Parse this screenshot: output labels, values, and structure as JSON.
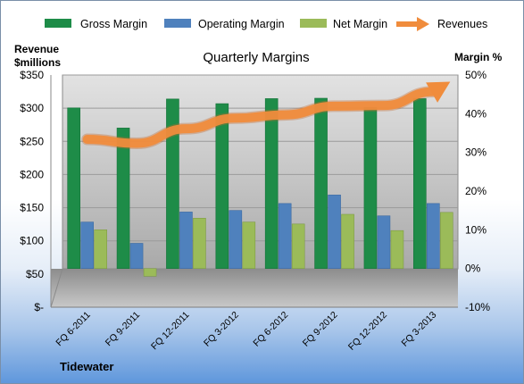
{
  "chart_data": {
    "type": "bar",
    "title": "Quarterly Margins",
    "ylabel_left": [
      "Revenue",
      "$millions"
    ],
    "ylabel_right": "Margin %",
    "footer": "Tidewater",
    "categories": [
      "FQ 6-2011",
      "FQ 9-2011",
      "FQ 12-2011",
      "FQ 3-2012",
      "FQ 6-2012",
      "FQ 9-2012",
      "FQ 12-2012",
      "FQ 3-2013"
    ],
    "y_left": {
      "ylim": [
        0,
        350
      ],
      "ticks": [
        0,
        50,
        100,
        150,
        200,
        250,
        300,
        350
      ],
      "tick_labels": [
        "$-",
        "$50",
        "$100",
        "$150",
        "$200",
        "$250",
        "$300",
        "$350"
      ]
    },
    "y_right": {
      "ylim": [
        -10,
        50
      ],
      "ticks": [
        -10,
        0,
        10,
        20,
        30,
        40,
        50
      ],
      "tick_labels": [
        "-10%",
        "0%",
        "10%",
        "20%",
        "30%",
        "40%",
        "50%"
      ]
    },
    "series": [
      {
        "name": "Gross Margin",
        "axis": "right",
        "color": "#1e8c48",
        "values": [
          41.5,
          36.3,
          43.8,
          42.6,
          43.9,
          44.0,
          41.6,
          43.9
        ]
      },
      {
        "name": "Operating Margin",
        "axis": "right",
        "color": "#4f81bd",
        "values": [
          12.0,
          6.5,
          14.6,
          15.0,
          16.8,
          19.0,
          13.6,
          16.8
        ]
      },
      {
        "name": "Net Margin",
        "axis": "right",
        "color": "#9bbb59",
        "values": [
          10.0,
          -2.0,
          13.0,
          12.0,
          11.5,
          14.0,
          9.8,
          14.5
        ]
      }
    ],
    "revenue_series": {
      "name": "Revenues",
      "axis": "left",
      "color": "#f08c3c",
      "values": [
        253,
        247,
        269,
        285,
        290,
        303,
        304,
        325
      ]
    },
    "grid": true,
    "legend_position": "top"
  }
}
